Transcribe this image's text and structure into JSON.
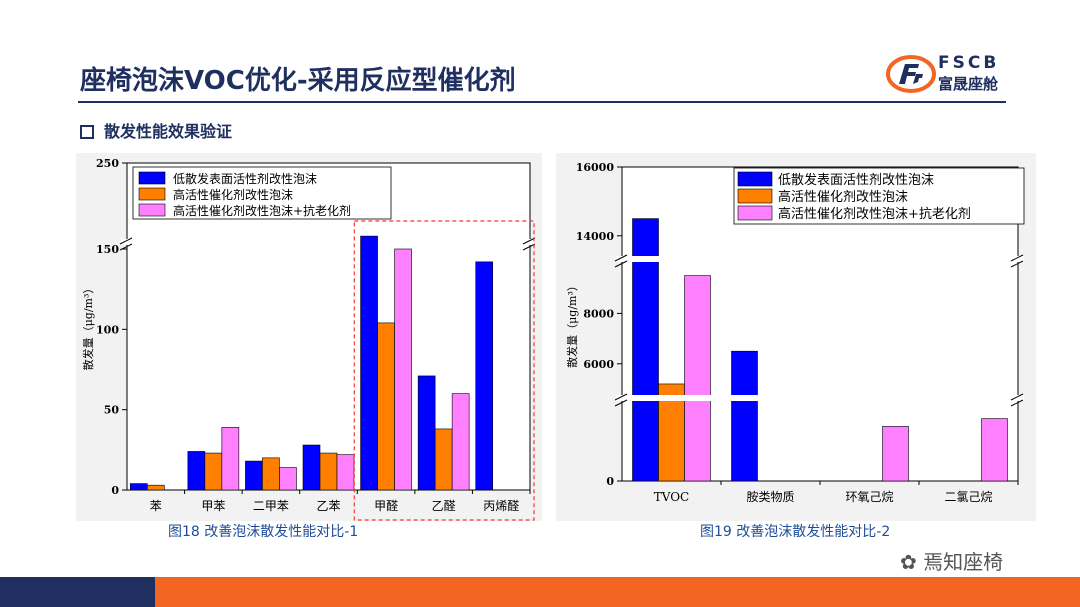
{
  "header": {
    "title": "座椅泡沫VOC优化-采用反应型催化剂",
    "logo_brand": "FSCB",
    "logo_cn": "富晟座舱"
  },
  "section": {
    "label": "散发性能效果验证"
  },
  "captions": {
    "left": "图18 改善泡沫散发性能对比-1",
    "right": "图19 改善泡沫散发性能对比-2"
  },
  "watermark": "焉知座椅",
  "colors": {
    "blue": "#0000ff",
    "orange": "#ff7f00",
    "pink": "#ff80ff",
    "navy": "#1f2f5f",
    "accent": "#f26522"
  },
  "chart_data": [
    {
      "type": "bar",
      "ylabel": "散发量（μg/m³）",
      "ylim": [
        0,
        250
      ],
      "axis_break": [
        150,
        250
      ],
      "y_ticks": [
        "0",
        "50",
        "100",
        "150",
        "250"
      ],
      "categories": [
        "苯",
        "甲苯",
        "二甲苯",
        "乙苯",
        "甲醛",
        "乙醛",
        "丙烯醛"
      ],
      "highlighted_categories": [
        "甲醛",
        "乙醛",
        "丙烯醛"
      ],
      "legend_position": "top-right",
      "series": [
        {
          "name": "低散发表面活性剂改性泡沫",
          "color": "#0000ff",
          "values": [
            4,
            24,
            18,
            28,
            165,
            71,
            142
          ]
        },
        {
          "name": "高活性催化剂改性泡沫",
          "color": "#ff7f00",
          "values": [
            3,
            23,
            20,
            23,
            104,
            38,
            0
          ]
        },
        {
          "name": "高活性催化剂改性泡沫+抗老化剂",
          "color": "#ff80ff",
          "values": [
            0,
            39,
            14,
            22,
            150,
            60,
            0
          ]
        }
      ]
    },
    {
      "type": "bar",
      "ylabel": "散发量（μg/m³）",
      "ylim": [
        0,
        16000
      ],
      "axis_breaks": [
        [
          3000,
          5000
        ],
        [
          10000,
          13500
        ]
      ],
      "y_ticks": [
        "0",
        "6000",
        "8000",
        "14000",
        "16000"
      ],
      "categories": [
        "TVOC",
        "胺类物质",
        "环氧己烷",
        "二氯己烷"
      ],
      "legend_position": "top-right",
      "series": [
        {
          "name": "低散发表面活性剂改性泡沫",
          "color": "#0000ff",
          "values": [
            14500,
            6500,
            0,
            0
          ]
        },
        {
          "name": "高活性催化剂改性泡沫",
          "color": "#ff7f00",
          "values": [
            5200,
            0,
            0,
            0
          ]
        },
        {
          "name": "高活性催化剂改性泡沫+抗老化剂",
          "color": "#ff80ff",
          "values": [
            9500,
            0,
            2100,
            2400
          ]
        }
      ]
    }
  ]
}
